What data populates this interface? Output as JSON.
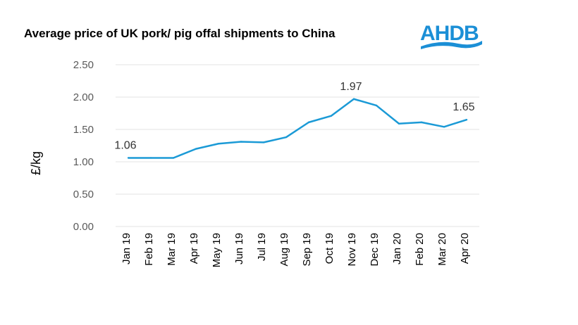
{
  "chart_data": {
    "type": "line",
    "title": "Average price of UK pork/ pig offal shipments to China",
    "ylabel": "£/kg",
    "xlabel": "",
    "categories": [
      "Jan 19",
      "Feb 19",
      "Mar 19",
      "Apr 19",
      "May 19",
      "Jun 19",
      "Jul 19",
      "Aug 19",
      "Sep 19",
      "Oct 19",
      "Nov 19",
      "Dec 19",
      "Jan 20",
      "Feb 20",
      "Mar 20",
      "Apr 20"
    ],
    "values": [
      1.06,
      1.06,
      1.06,
      1.2,
      1.28,
      1.31,
      1.3,
      1.38,
      1.61,
      1.71,
      1.97,
      1.87,
      1.59,
      1.61,
      1.54,
      1.65
    ],
    "yticks": [
      "0.00",
      "0.50",
      "1.00",
      "1.50",
      "2.00",
      "2.50"
    ],
    "ylim": [
      0,
      2.5
    ],
    "grid": true,
    "data_labels": [
      {
        "index": 0,
        "text": "1.06"
      },
      {
        "index": 10,
        "text": "1.97"
      },
      {
        "index": 15,
        "text": "1.65"
      }
    ],
    "line_color": "#1b9ad6",
    "legend": "none"
  },
  "logo": {
    "text": "AHDB",
    "color": "#1b8fd6"
  }
}
